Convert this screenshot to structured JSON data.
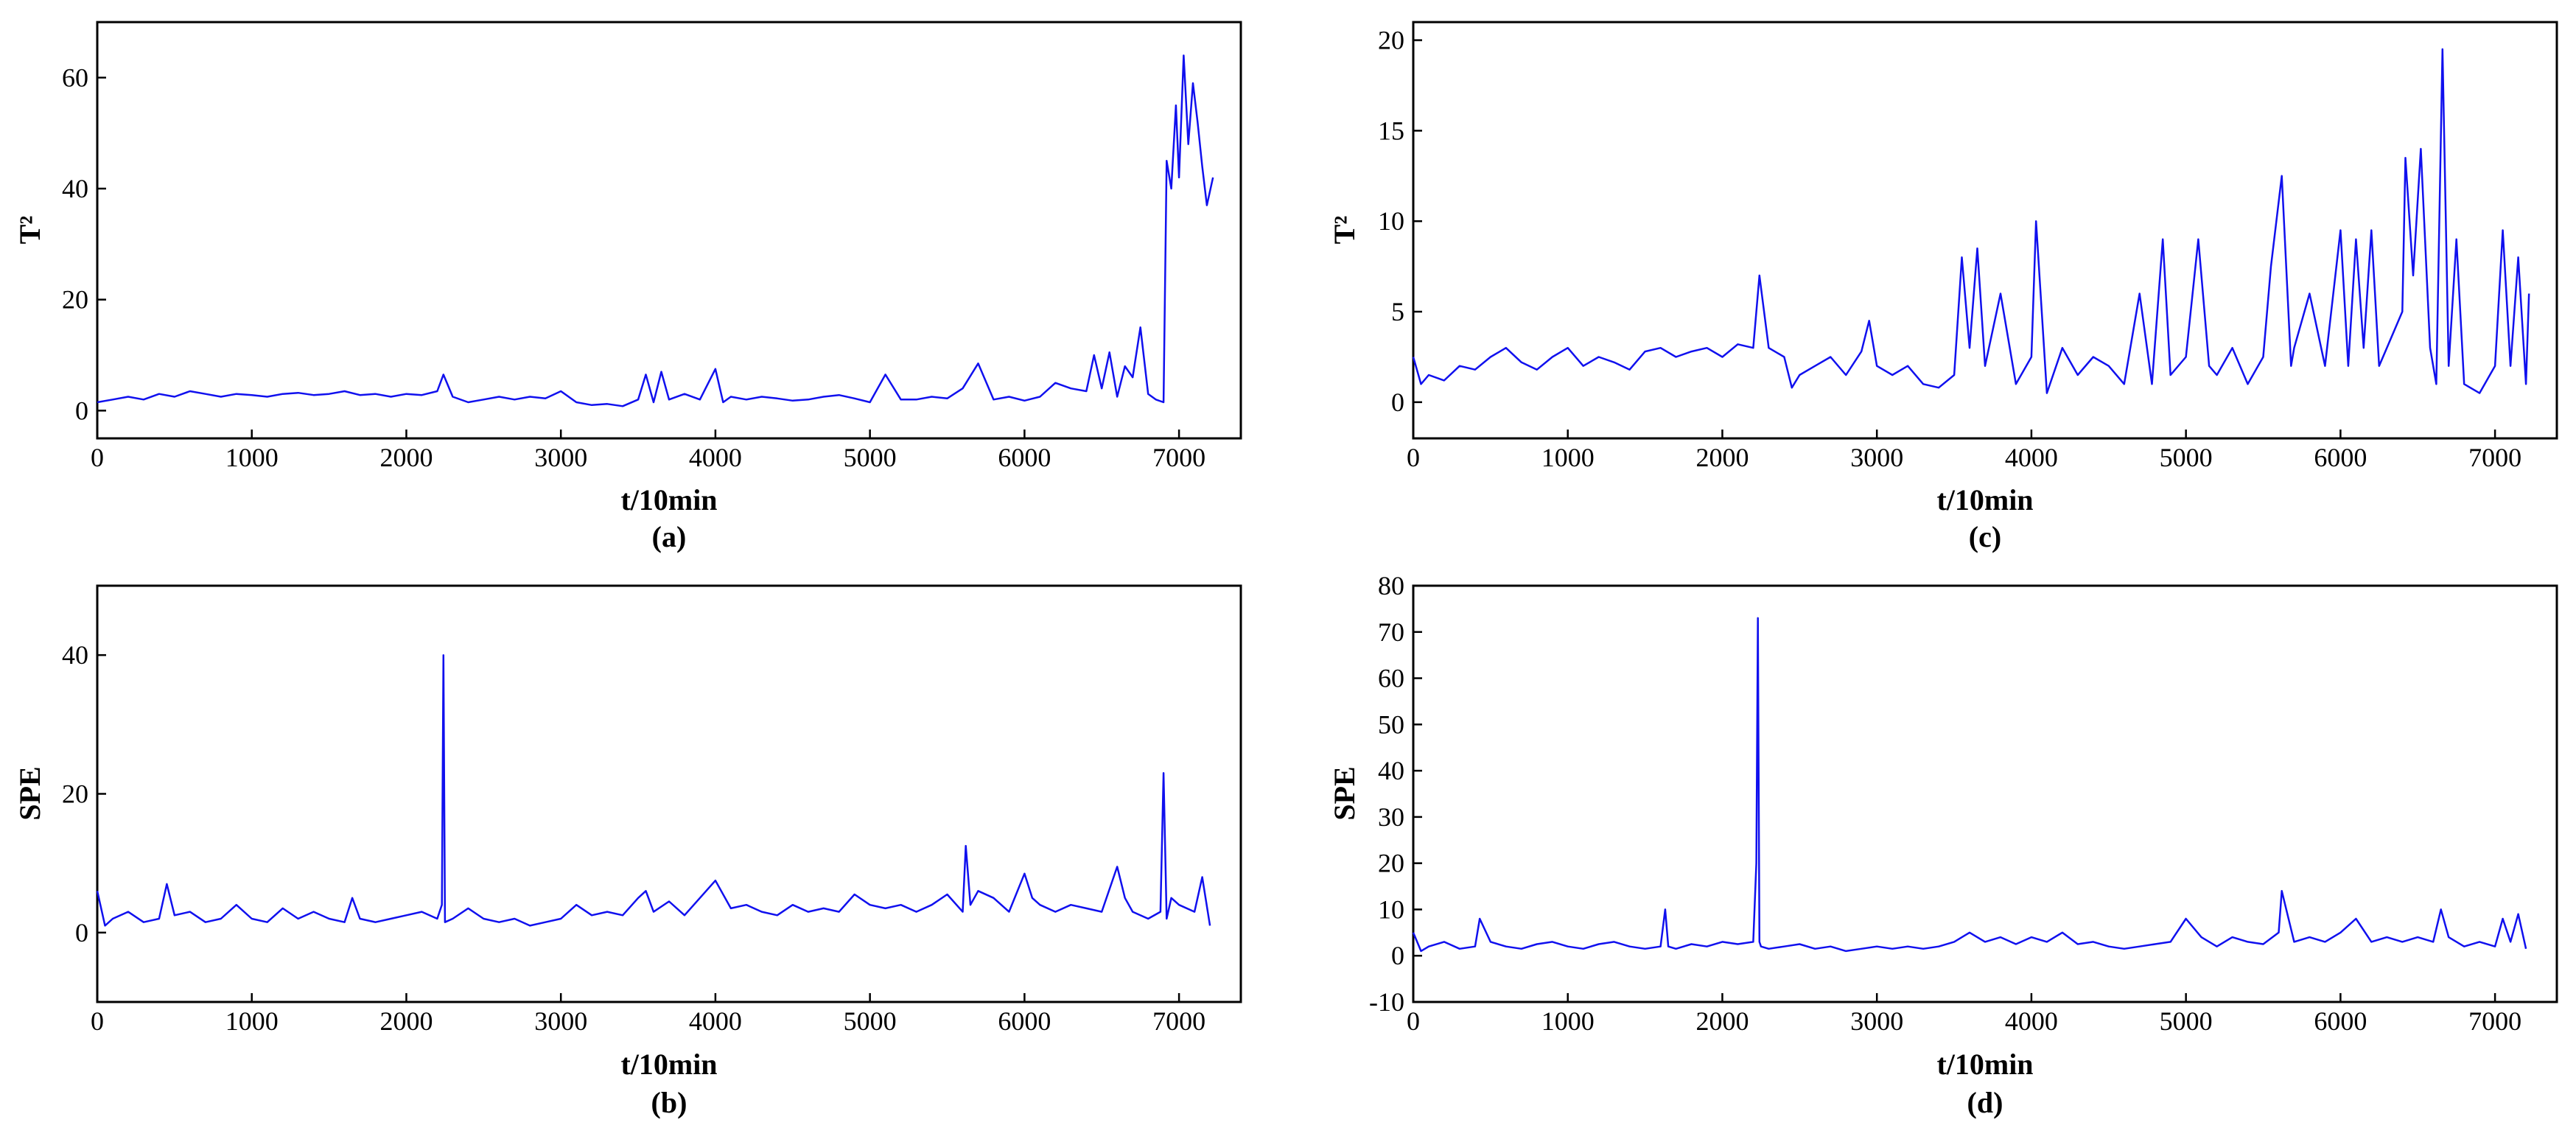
{
  "figure": {
    "chart_colors": {
      "line": "#1010ee",
      "axis": "#000000",
      "background": "#ffffff"
    }
  },
  "chart_data": [
    {
      "id": "a",
      "type": "line",
      "panel_label": "(a)",
      "xlabel": "t/10min",
      "ylabel": "T²",
      "xlim": [
        0,
        7400
      ],
      "ylim": [
        -5,
        70
      ],
      "xticks": [
        0,
        1000,
        2000,
        3000,
        4000,
        5000,
        6000,
        7000
      ],
      "yticks": [
        0,
        20,
        40,
        60
      ],
      "grid": false,
      "series": [
        {
          "x": [
            0,
            100,
            200,
            300,
            400,
            500,
            600,
            700,
            800,
            900,
            1000,
            1100,
            1200,
            1300,
            1400,
            1500,
            1600,
            1700,
            1800,
            1900,
            2000,
            2100,
            2200,
            2240,
            2300,
            2400,
            2500,
            2600,
            2700,
            2800,
            2900,
            3000,
            3100,
            3200,
            3300,
            3400,
            3500,
            3550,
            3600,
            3650,
            3700,
            3800,
            3900,
            4000,
            4050,
            4100,
            4200,
            4300,
            4400,
            4500,
            4600,
            4700,
            4800,
            4900,
            5000,
            5100,
            5200,
            5300,
            5400,
            5500,
            5600,
            5700,
            5800,
            5900,
            6000,
            6100,
            6200,
            6300,
            6400,
            6450,
            6500,
            6550,
            6600,
            6650,
            6700,
            6750,
            6800,
            6850,
            6900,
            6920,
            6950,
            6980,
            7000,
            7030,
            7060,
            7090,
            7120,
            7150,
            7180,
            7220
          ],
          "y": [
            1.5,
            2,
            2.5,
            2,
            3,
            2.5,
            3.5,
            3,
            2.5,
            3,
            2.8,
            2.5,
            3,
            3.2,
            2.8,
            3,
            3.5,
            2.8,
            3,
            2.5,
            3,
            2.8,
            3.5,
            6.5,
            2.5,
            1.5,
            2,
            2.5,
            2,
            2.5,
            2.2,
            3.5,
            1.5,
            1,
            1.2,
            0.8,
            2,
            6.5,
            1.5,
            7,
            2,
            3,
            2,
            7.5,
            1.5,
            2.5,
            2,
            2.5,
            2.2,
            1.8,
            2,
            2.5,
            2.8,
            2.2,
            1.5,
            6.5,
            2,
            2,
            2.5,
            2.2,
            4,
            8.5,
            2,
            2.5,
            1.8,
            2.5,
            5,
            4,
            3.5,
            10,
            4,
            10.5,
            2.5,
            8,
            6,
            15,
            3,
            2,
            1.5,
            45,
            40,
            55,
            42,
            64,
            48,
            59,
            52,
            44,
            37,
            42
          ]
        }
      ]
    },
    {
      "id": "b",
      "type": "line",
      "panel_label": "(b)",
      "xlabel": "t/10min",
      "ylabel": "SPE",
      "xlim": [
        0,
        7400
      ],
      "ylim": [
        -10,
        50
      ],
      "xticks": [
        0,
        1000,
        2000,
        3000,
        4000,
        5000,
        6000,
        7000
      ],
      "yticks": [
        0,
        20,
        40
      ],
      "grid": false,
      "series": [
        {
          "x": [
            0,
            50,
            100,
            200,
            300,
            400,
            450,
            500,
            600,
            700,
            800,
            900,
            1000,
            1100,
            1200,
            1300,
            1400,
            1500,
            1600,
            1650,
            1700,
            1800,
            1900,
            2000,
            2100,
            2200,
            2230,
            2240,
            2250,
            2300,
            2400,
            2500,
            2600,
            2700,
            2800,
            2900,
            3000,
            3100,
            3200,
            3300,
            3400,
            3500,
            3550,
            3600,
            3700,
            3800,
            3900,
            4000,
            4100,
            4200,
            4300,
            4400,
            4500,
            4600,
            4700,
            4800,
            4900,
            5000,
            5100,
            5200,
            5300,
            5400,
            5500,
            5600,
            5620,
            5650,
            5700,
            5800,
            5900,
            6000,
            6050,
            6100,
            6200,
            6300,
            6400,
            6500,
            6600,
            6650,
            6700,
            6800,
            6880,
            6900,
            6920,
            6950,
            7000,
            7100,
            7150,
            7200
          ],
          "y": [
            6,
            1,
            2,
            3,
            1.5,
            2,
            7,
            2.5,
            3,
            1.5,
            2,
            4,
            2,
            1.5,
            3.5,
            2,
            3,
            2,
            1.5,
            5,
            2,
            1.5,
            2,
            2.5,
            3,
            2,
            4,
            40,
            1.5,
            2,
            3.5,
            2,
            1.5,
            2,
            1,
            1.5,
            2,
            4,
            2.5,
            3,
            2.5,
            5,
            6,
            3,
            4.5,
            2.5,
            5,
            7.5,
            3.5,
            4,
            3,
            2.5,
            4,
            3,
            3.5,
            3,
            5.5,
            4,
            3.5,
            4,
            3,
            4,
            5.5,
            3,
            12.5,
            4,
            6,
            5,
            3,
            8.5,
            5,
            4,
            3,
            4,
            3.5,
            3,
            9.5,
            5,
            3,
            2,
            3,
            23,
            2,
            5,
            4,
            3,
            8,
            1
          ]
        }
      ]
    },
    {
      "id": "c",
      "type": "line",
      "panel_label": "(c)",
      "xlabel": "t/10min",
      "ylabel": "T²",
      "xlim": [
        0,
        7400
      ],
      "ylim": [
        -2,
        21
      ],
      "xticks": [
        0,
        1000,
        2000,
        3000,
        4000,
        5000,
        6000,
        7000
      ],
      "yticks": [
        0,
        5,
        10,
        15,
        20
      ],
      "grid": false,
      "series": [
        {
          "x": [
            0,
            50,
            100,
            200,
            300,
            400,
            500,
            600,
            700,
            800,
            900,
            1000,
            1100,
            1200,
            1300,
            1400,
            1500,
            1600,
            1700,
            1800,
            1900,
            2000,
            2100,
            2200,
            2240,
            2300,
            2400,
            2450,
            2500,
            2600,
            2700,
            2800,
            2900,
            2950,
            3000,
            3100,
            3200,
            3300,
            3400,
            3500,
            3550,
            3600,
            3650,
            3700,
            3800,
            3900,
            4000,
            4030,
            4100,
            4200,
            4300,
            4400,
            4500,
            4600,
            4700,
            4780,
            4850,
            4900,
            5000,
            5080,
            5150,
            5200,
            5300,
            5400,
            5500,
            5550,
            5620,
            5680,
            5700,
            5800,
            5900,
            6000,
            6050,
            6100,
            6150,
            6200,
            6250,
            6300,
            6400,
            6420,
            6470,
            6520,
            6580,
            6620,
            6660,
            6700,
            6750,
            6800,
            6900,
            7000,
            7050,
            7100,
            7150,
            7200,
            7220
          ],
          "y": [
            2.5,
            1,
            1.5,
            1.2,
            2,
            1.8,
            2.5,
            3,
            2.2,
            1.8,
            2.5,
            3,
            2,
            2.5,
            2.2,
            1.8,
            2.8,
            3,
            2.5,
            2.8,
            3,
            2.5,
            3.2,
            3,
            7,
            3,
            2.5,
            0.8,
            1.5,
            2,
            2.5,
            1.5,
            2.8,
            4.5,
            2,
            1.5,
            2,
            1,
            0.8,
            1.5,
            8,
            3,
            8.5,
            2,
            6,
            1,
            2.5,
            10,
            0.5,
            3,
            1.5,
            2.5,
            2,
            1,
            6,
            1,
            9,
            1.5,
            2.5,
            9,
            2,
            1.5,
            3,
            1,
            2.5,
            7.5,
            12.5,
            2,
            3,
            6,
            2,
            9.5,
            2,
            9,
            3,
            9.5,
            2,
            3,
            5,
            13.5,
            7,
            14,
            3,
            1,
            19.5,
            2,
            9,
            1,
            0.5,
            2,
            9.5,
            2,
            8,
            1,
            6
          ]
        }
      ]
    },
    {
      "id": "d",
      "type": "line",
      "panel_label": "(d)",
      "xlabel": "t/10min",
      "ylabel": "SPE",
      "xlim": [
        0,
        7400
      ],
      "ylim": [
        -10,
        80
      ],
      "xticks": [
        0,
        1000,
        2000,
        3000,
        4000,
        5000,
        6000,
        7000
      ],
      "yticks": [
        -10,
        0,
        10,
        20,
        30,
        40,
        50,
        60,
        70,
        80
      ],
      "grid": false,
      "series": [
        {
          "x": [
            0,
            50,
            100,
            200,
            300,
            400,
            430,
            500,
            600,
            700,
            800,
            900,
            1000,
            1100,
            1200,
            1300,
            1400,
            1500,
            1600,
            1630,
            1650,
            1700,
            1800,
            1900,
            2000,
            2100,
            2200,
            2220,
            2230,
            2240,
            2250,
            2300,
            2400,
            2500,
            2600,
            2700,
            2800,
            2900,
            3000,
            3100,
            3200,
            3300,
            3400,
            3500,
            3600,
            3700,
            3800,
            3900,
            4000,
            4100,
            4200,
            4300,
            4400,
            4500,
            4600,
            4700,
            4800,
            4900,
            5000,
            5100,
            5200,
            5300,
            5400,
            5500,
            5600,
            5620,
            5700,
            5800,
            5900,
            6000,
            6100,
            6200,
            6300,
            6400,
            6500,
            6600,
            6650,
            6700,
            6800,
            6900,
            7000,
            7050,
            7100,
            7150,
            7200
          ],
          "y": [
            5,
            1,
            2,
            3,
            1.5,
            2,
            8,
            3,
            2,
            1.5,
            2.5,
            3,
            2,
            1.5,
            2.5,
            3,
            2,
            1.5,
            2,
            10,
            2,
            1.5,
            2.5,
            2,
            3,
            2.5,
            3,
            20,
            73,
            3,
            2,
            1.5,
            2,
            2.5,
            1.5,
            2,
            1,
            1.5,
            2,
            1.5,
            2,
            1.5,
            2,
            3,
            5,
            3,
            4,
            2.5,
            4,
            3,
            5,
            2.5,
            3,
            2,
            1.5,
            2,
            2.5,
            3,
            8,
            4,
            2,
            4,
            3,
            2.5,
            5,
            14,
            3,
            4,
            3,
            5,
            8,
            3,
            4,
            3,
            4,
            3,
            10,
            4,
            2,
            3,
            2,
            8,
            3,
            9,
            1.5
          ]
        }
      ]
    }
  ]
}
